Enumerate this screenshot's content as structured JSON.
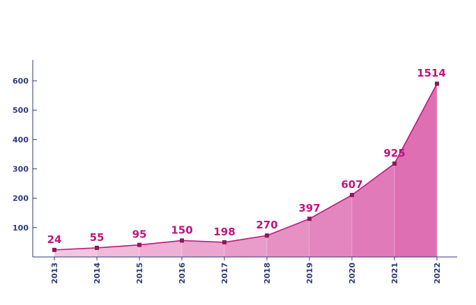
{
  "chart_data": {
    "type": "area",
    "title": "",
    "xlabel": "",
    "ylabel": "",
    "categories": [
      "2013",
      "2014",
      "2015",
      "2016",
      "2017",
      "2018",
      "2019",
      "2020",
      "2021",
      "2022"
    ],
    "series": [
      {
        "labels": [
          "24",
          "55",
          "95",
          "150",
          "198",
          "270",
          "397",
          "607",
          "925",
          "1514"
        ],
        "values": [
          24,
          31,
          41,
          56,
          50,
          73,
          130,
          211,
          318,
          590
        ]
      }
    ],
    "ylim": [
      0,
      650
    ],
    "yticks": [
      100,
      200,
      300,
      400,
      500,
      600
    ],
    "grid": false,
    "legend": "none",
    "colors": {
      "line": "#c0147f",
      "marker": "#8a1a5c",
      "label": "#c0147f",
      "axis": "#2b3a78",
      "fill_light": "#f3c6df",
      "fill_dark": "#de6fb3"
    }
  }
}
